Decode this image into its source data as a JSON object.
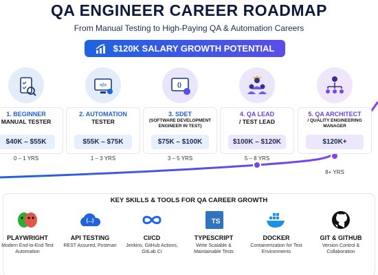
{
  "header": {
    "title": "QA ENGINEER CAREER ROADMAP",
    "subtitle": "From Manual Testing to High-Paying QA & Automation Careers",
    "badge": "$120K SALARY GROWTH POTENTIAL"
  },
  "stages": [
    {
      "name": "1. BEGINNER",
      "role": "MANUAL TESTER",
      "salary": "$40K – $55K",
      "years": "0 – 1 YRS"
    },
    {
      "name": "2. AUTOMATION",
      "role": "TESTER",
      "salary": "$55K – $75K",
      "years": "1 – 3 YRS"
    },
    {
      "name": "3. SDET",
      "role": "(SOFTWARE DEVELOPMENT ENGINEER IN TEST)",
      "salary": "$75K – $100K",
      "years": "3 – 5 YRS"
    },
    {
      "name": "4. QA LEAD",
      "role": "/ TEST LEAD",
      "salary": "$100K – $120K",
      "years": "5 – 8 YRS"
    },
    {
      "name": "5. QA ARCHITECT",
      "role": "/ QUALITY ENGINEERING MANAGER",
      "salary": "$120K+",
      "years": "8+ YRS"
    }
  ],
  "skills": {
    "title": "KEY SKILLS & TOOLS FOR QA CAREER GROWTH",
    "items": [
      {
        "name": "PLAYWRIGHT",
        "desc": "Modern End-to-End Test Automation"
      },
      {
        "name": "API TESTING",
        "desc": "REST Assured, Postman",
        "icon_text": "{...}"
      },
      {
        "name": "CI/CD",
        "desc": "Jenkins, GitHub Actions, GitLab CI"
      },
      {
        "name": "TYPESCRIPT",
        "desc": "Write Scalable & Maintainable Tests",
        "icon_text": "TS"
      },
      {
        "name": "DOCKER",
        "desc": "Containerization for Test Environments"
      },
      {
        "name": "GIT & GITHUB",
        "desc": "Version Control & Collaboration"
      }
    ]
  }
}
